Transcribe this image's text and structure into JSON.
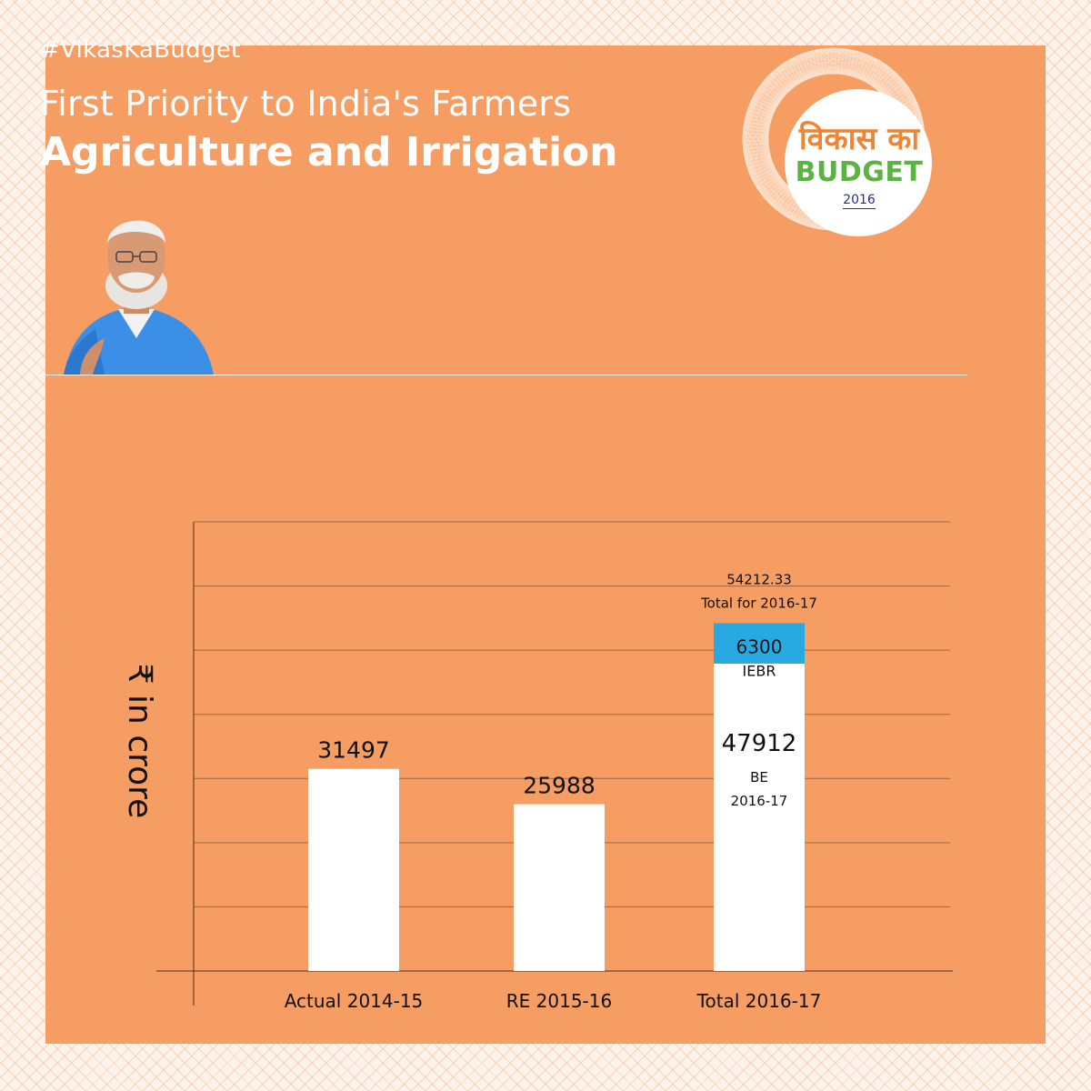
{
  "header": {
    "hashtag": "#VikasKaBudget",
    "subtitle": "First Priority to India's Farmers",
    "title": "Agriculture and Irrigation"
  },
  "logo": {
    "hindi": "विकास का",
    "budget": "BUDGET",
    "year": "2016"
  },
  "colors": {
    "background": "#f59d63",
    "bar": "#ffffff",
    "iebr": "#29a9e1",
    "grid": "#5a3a2a"
  },
  "chart_data": {
    "type": "bar",
    "ylabel": "₹ in crore",
    "categories": [
      "Actual 2014-15",
      "RE 2015-16",
      "Total 2016-17"
    ],
    "series": [
      {
        "name": "BE",
        "values": [
          31497,
          25988,
          47912
        ]
      },
      {
        "name": "IEBR",
        "values": [
          0,
          0,
          6300
        ]
      }
    ],
    "data_labels": [
      "31497",
      "25988",
      "47912"
    ],
    "stack_labels": {
      "be_value": "47912",
      "be_note_1": "BE",
      "be_note_2": "2016-17",
      "iebr_value": "6300",
      "iebr_note": "IEBR",
      "total_value": "54212.33",
      "total_note": "Total for 2016-17"
    },
    "ylim": [
      0,
      70000
    ],
    "grid": true,
    "legend": "none"
  }
}
